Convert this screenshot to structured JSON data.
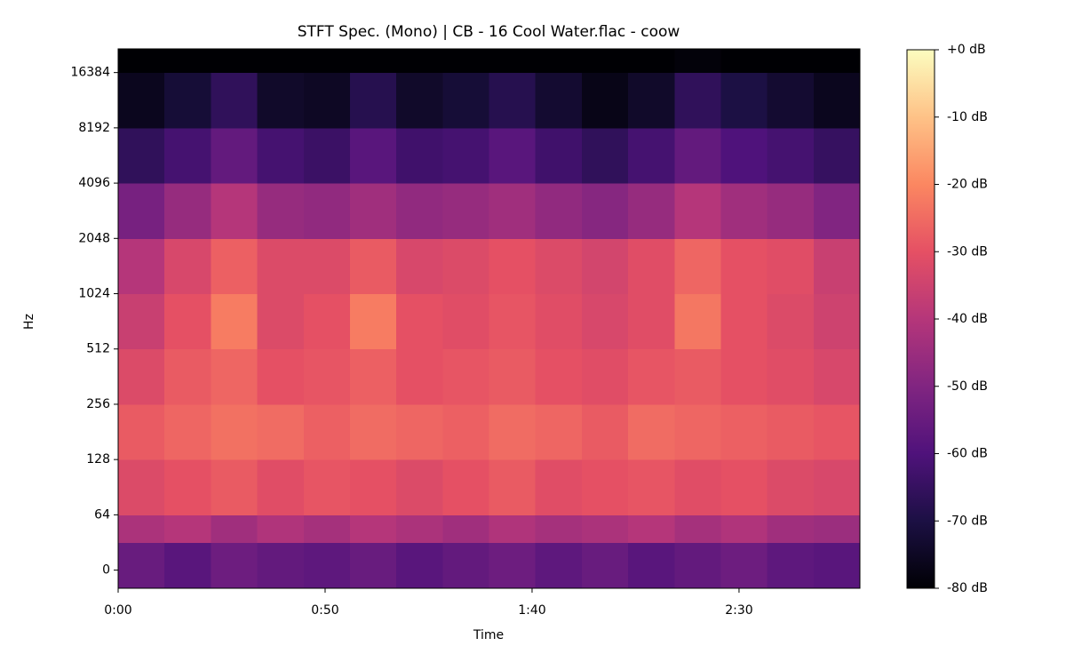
{
  "chart_data": {
    "type": "heatmap",
    "title": "STFT Spec. (Mono) | CB - 16 Cool Water.flac - coow",
    "x_label": "Time",
    "y_label": "Hz",
    "xlim": [
      0,
      179.2
    ],
    "xticks": [
      {
        "value": 0,
        "label": "0:00"
      },
      {
        "value": 50,
        "label": "0:50"
      },
      {
        "value": 100,
        "label": "1:40"
      },
      {
        "value": 150,
        "label": "2:30"
      }
    ],
    "yscale": "symlog",
    "linthresh": 64,
    "logbase": 2,
    "ylim": [
      -21,
      22050
    ],
    "yticks": [
      0,
      64,
      128,
      256,
      512,
      1024,
      2048,
      4096,
      8192,
      16384
    ],
    "x_edges": [
      0,
      11.2,
      22.4,
      33.6,
      44.8,
      56,
      67.2,
      78.4,
      89.6,
      100.8,
      112,
      123.2,
      134.4,
      145.6,
      156.8,
      168,
      179.2
    ],
    "y_edges": [
      -21,
      32,
      64,
      128,
      256,
      512,
      1024,
      2048,
      4096,
      8192,
      16384,
      22050
    ],
    "values": [
      [
        -55,
        -58,
        -54,
        -56,
        -57,
        -55,
        -58,
        -56,
        -54,
        -57,
        -55,
        -58,
        -56,
        -54,
        -57,
        -58
      ],
      [
        -42,
        -40,
        -44,
        -41,
        -43,
        -40,
        -42,
        -44,
        -41,
        -43,
        -42,
        -40,
        -43,
        -41,
        -44,
        -45
      ],
      [
        -32,
        -30,
        -28,
        -31,
        -29,
        -30,
        -32,
        -30,
        -28,
        -31,
        -30,
        -29,
        -31,
        -30,
        -32,
        -33
      ],
      [
        -28,
        -26,
        -24,
        -25,
        -27,
        -25,
        -26,
        -27,
        -25,
        -26,
        -28,
        -25,
        -26,
        -27,
        -28,
        -29
      ],
      [
        -32,
        -28,
        -26,
        -30,
        -29,
        -27,
        -30,
        -29,
        -28,
        -30,
        -31,
        -29,
        -28,
        -30,
        -31,
        -33
      ],
      [
        -36,
        -30,
        -22,
        -32,
        -30,
        -22,
        -30,
        -31,
        -29,
        -31,
        -33,
        -31,
        -23,
        -30,
        -32,
        -35
      ],
      [
        -40,
        -33,
        -27,
        -32,
        -32,
        -28,
        -33,
        -32,
        -30,
        -32,
        -34,
        -31,
        -26,
        -30,
        -31,
        -36
      ],
      [
        -52,
        -46,
        -40,
        -46,
        -47,
        -44,
        -47,
        -46,
        -44,
        -47,
        -49,
        -46,
        -40,
        -44,
        -46,
        -50
      ],
      [
        -66,
        -62,
        -56,
        -62,
        -64,
        -58,
        -63,
        -62,
        -58,
        -63,
        -66,
        -62,
        -56,
        -60,
        -62,
        -65
      ],
      [
        -76,
        -72,
        -66,
        -74,
        -75,
        -68,
        -74,
        -72,
        -68,
        -73,
        -77,
        -74,
        -66,
        -70,
        -73,
        -76
      ],
      [
        -80,
        -80,
        -80,
        -80,
        -80,
        -80,
        -80,
        -80,
        -80,
        -80,
        -80,
        -80,
        -79,
        -80,
        -80,
        -80
      ]
    ],
    "clim": [
      -80,
      0
    ],
    "colorscale": [
      "#000004",
      "#1c1044",
      "#4f127b",
      "#812581",
      "#b5367a",
      "#e55064",
      "#fb8761",
      "#fec287",
      "#fcfdbf"
    ],
    "cticks": [
      {
        "value": 0,
        "label": "+0 dB"
      },
      {
        "value": -10,
        "label": "-10 dB"
      },
      {
        "value": -20,
        "label": "-20 dB"
      },
      {
        "value": -30,
        "label": "-30 dB"
      },
      {
        "value": -40,
        "label": "-40 dB"
      },
      {
        "value": -50,
        "label": "-50 dB"
      },
      {
        "value": -60,
        "label": "-60 dB"
      },
      {
        "value": -70,
        "label": "-70 dB"
      },
      {
        "value": -80,
        "label": "-80 dB"
      }
    ]
  }
}
